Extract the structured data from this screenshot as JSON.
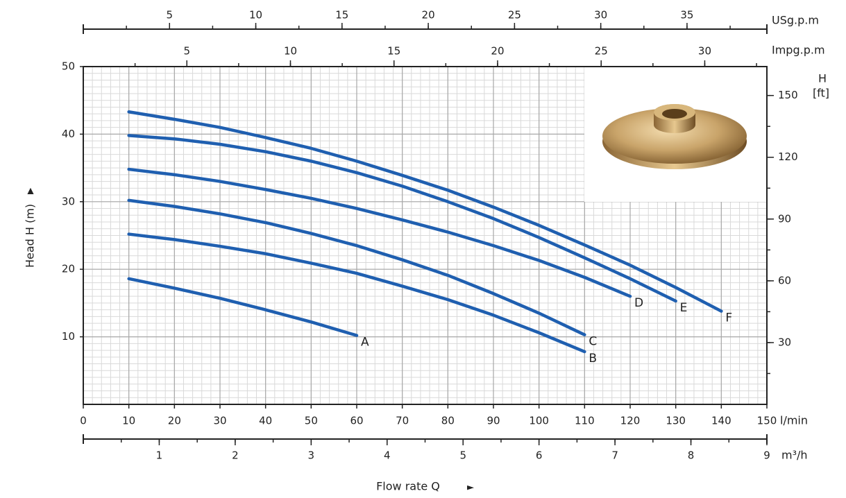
{
  "chart_data": {
    "type": "line",
    "y_label": "Head H (m)",
    "x_label": "Flow rate Q",
    "x_unit": "l/min",
    "xlim": [
      0,
      150
    ],
    "xticks": [
      0,
      10,
      20,
      30,
      40,
      50,
      60,
      70,
      80,
      90,
      100,
      110,
      120,
      130,
      140,
      150
    ],
    "ylim": [
      0,
      50
    ],
    "yticks": [
      10,
      20,
      30,
      40,
      50
    ],
    "grid": true,
    "y2_label": "H",
    "y2_unit": "[ft]",
    "y2lim": [
      0,
      164.04
    ],
    "y2ticks": [
      30,
      60,
      90,
      120,
      150
    ],
    "secondary_x_axes": [
      {
        "label": "USg.p.m",
        "xlim": [
          0,
          39.63
        ],
        "xticks": [
          5,
          10,
          15,
          20,
          25,
          30,
          35
        ]
      },
      {
        "label": "Impg.p.m",
        "xlim": [
          0,
          33.0
        ],
        "xticks": [
          5,
          10,
          15,
          20,
          25,
          30
        ]
      },
      {
        "label": "m³/h",
        "xlim": [
          0,
          9
        ],
        "xticks": [
          1,
          2,
          3,
          4,
          5,
          6,
          7,
          8,
          9
        ]
      }
    ],
    "series": [
      {
        "name": "A",
        "color": "#1f5fb0",
        "x": [
          10,
          20,
          30,
          40,
          50,
          60
        ],
        "values": [
          18.6,
          17.2,
          15.7,
          14.0,
          12.2,
          10.2
        ]
      },
      {
        "name": "B",
        "color": "#1f5fb0",
        "x": [
          10,
          20,
          30,
          40,
          50,
          60,
          70,
          80,
          90,
          100,
          110
        ],
        "values": [
          25.2,
          24.4,
          23.4,
          22.3,
          20.9,
          19.4,
          17.5,
          15.5,
          13.2,
          10.6,
          7.8
        ]
      },
      {
        "name": "C",
        "color": "#1f5fb0",
        "x": [
          10,
          20,
          30,
          40,
          50,
          60,
          70,
          80,
          90,
          100,
          110
        ],
        "values": [
          30.2,
          29.3,
          28.2,
          26.9,
          25.3,
          23.5,
          21.4,
          19.1,
          16.4,
          13.5,
          10.3
        ]
      },
      {
        "name": "D",
        "color": "#1f5fb0",
        "x": [
          10,
          20,
          30,
          40,
          50,
          60,
          70,
          80,
          90,
          100,
          110,
          120
        ],
        "values": [
          34.8,
          34.0,
          33.0,
          31.8,
          30.5,
          29.0,
          27.3,
          25.5,
          23.5,
          21.3,
          18.8,
          16.0
        ]
      },
      {
        "name": "E",
        "color": "#1f5fb0",
        "x": [
          10,
          20,
          30,
          40,
          50,
          60,
          70,
          80,
          90,
          100,
          110,
          120,
          130
        ],
        "values": [
          39.8,
          39.3,
          38.5,
          37.4,
          36.0,
          34.3,
          32.3,
          30.0,
          27.5,
          24.7,
          21.7,
          18.6,
          15.3
        ]
      },
      {
        "name": "F",
        "color": "#1f5fb0",
        "x": [
          10,
          20,
          30,
          40,
          50,
          60,
          70,
          80,
          90,
          100,
          110,
          120,
          130,
          140
        ],
        "values": [
          43.3,
          42.2,
          41.0,
          39.5,
          37.9,
          36.0,
          33.9,
          31.7,
          29.2,
          26.5,
          23.6,
          20.6,
          17.3,
          13.8
        ]
      }
    ]
  }
}
